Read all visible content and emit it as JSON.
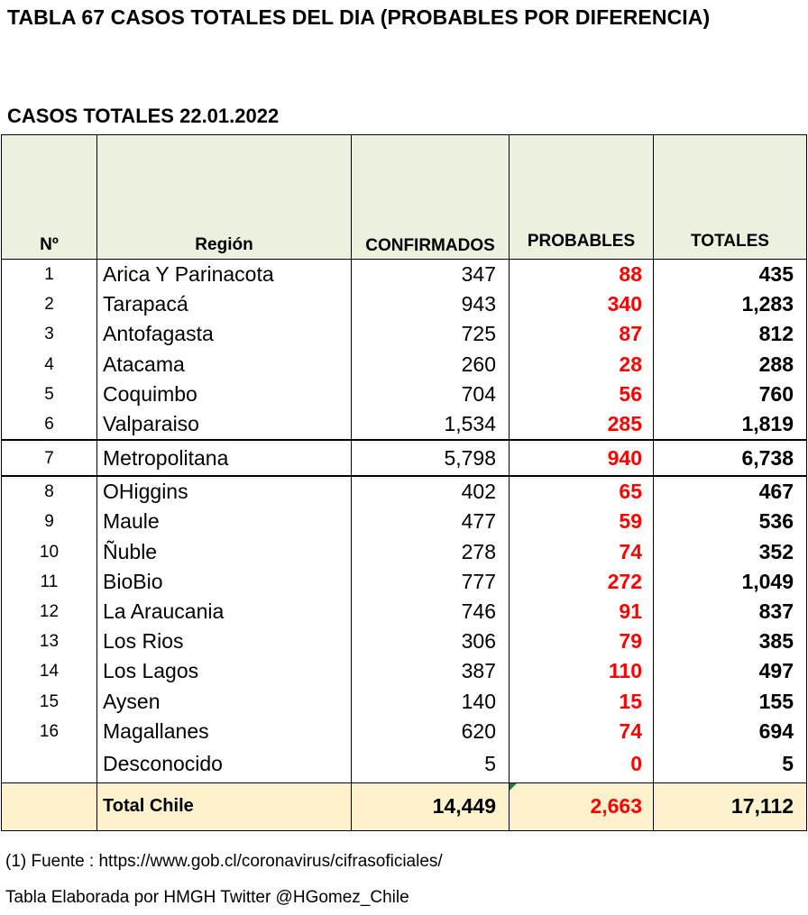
{
  "title": "TABLA 67 CASOS TOTALES DEL DIA (PROBABLES POR DIFERENCIA)",
  "subtitle": "CASOS TOTALES 22.01.2022",
  "headers": {
    "num": "Nº",
    "region": "Región",
    "confirmados": "CONFIRMADOS",
    "probables": "PROBABLES",
    "totales": "TOTALES"
  },
  "rows": [
    {
      "num": "1",
      "region": "Arica Y Parinacota",
      "confirmados": "347",
      "probables": "88",
      "totales": "435"
    },
    {
      "num": "2",
      "region": "Tarapacá",
      "confirmados": "943",
      "probables": "340",
      "totales": "1,283"
    },
    {
      "num": "3",
      "region": "Antofagasta",
      "confirmados": "725",
      "probables": "87",
      "totales": "812"
    },
    {
      "num": "4",
      "region": "Atacama",
      "confirmados": "260",
      "probables": "28",
      "totales": "288"
    },
    {
      "num": "5",
      "region": "Coquimbo",
      "confirmados": "704",
      "probables": "56",
      "totales": "760"
    },
    {
      "num": "6",
      "region": "Valparaiso",
      "confirmados": "1,534",
      "probables": "285",
      "totales": "1,819"
    },
    {
      "num": "7",
      "region": "Metropolitana",
      "confirmados": "5,798",
      "probables": "940",
      "totales": "6,738"
    },
    {
      "num": "8",
      "region": "OHiggins",
      "confirmados": "402",
      "probables": "65",
      "totales": "467"
    },
    {
      "num": "9",
      "region": "Maule",
      "confirmados": "477",
      "probables": "59",
      "totales": "536"
    },
    {
      "num": "10",
      "region": "Ñuble",
      "confirmados": "278",
      "probables": "74",
      "totales": "352"
    },
    {
      "num": "11",
      "region": "BioBio",
      "confirmados": "777",
      "probables": "272",
      "totales": "1,049"
    },
    {
      "num": "12",
      "region": "La Araucania",
      "confirmados": "746",
      "probables": "91",
      "totales": "837"
    },
    {
      "num": "13",
      "region": "Los Rios",
      "confirmados": "306",
      "probables": "79",
      "totales": "385"
    },
    {
      "num": "14",
      "region": "Los Lagos",
      "confirmados": "387",
      "probables": "110",
      "totales": "497"
    },
    {
      "num": "15",
      "region": "Aysen",
      "confirmados": "140",
      "probables": "15",
      "totales": "155"
    },
    {
      "num": "16",
      "region": "Magallanes",
      "confirmados": "620",
      "probables": "74",
      "totales": "694"
    },
    {
      "num": "",
      "region": "Desconocido",
      "confirmados": "5",
      "probables": "0",
      "totales": "5"
    }
  ],
  "total": {
    "label": "Total Chile",
    "confirmados": "14,449",
    "probables": "2,663",
    "totales": "17,112"
  },
  "footer": {
    "source": "(1) Fuente : https://www.gob.cl/coronavirus/cifrasoficiales/",
    "credit": "Tabla Elaborada por HMGH Twitter @HGomez_Chile"
  },
  "colors": {
    "header_bg": "#ebf1de",
    "total_bg": "#fdf2cd",
    "probables_text": "#ff0000"
  }
}
